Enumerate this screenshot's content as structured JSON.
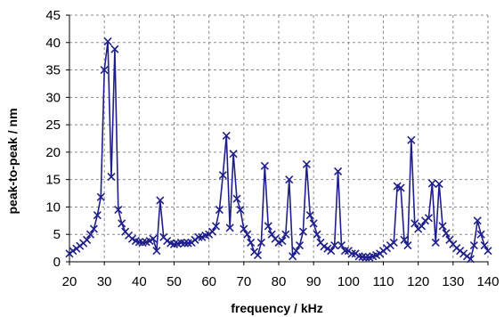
{
  "chart_data": {
    "type": "line",
    "title": "",
    "xlabel": "frequency / kHz",
    "ylabel": "peak-to-peak / nm",
    "xlim": [
      20,
      140
    ],
    "ylim": [
      0,
      45
    ],
    "xticks": [
      20,
      30,
      40,
      50,
      60,
      70,
      80,
      90,
      100,
      110,
      120,
      130,
      140
    ],
    "yticks": [
      0,
      5,
      10,
      15,
      20,
      25,
      30,
      35,
      40,
      45
    ],
    "grid": true,
    "legend": "none",
    "line_color": "#1f1f8c",
    "marker": "x",
    "series": [
      {
        "x": [
          20,
          21,
          22,
          23,
          24,
          25,
          26,
          27,
          28,
          29,
          30,
          31,
          32,
          33,
          34,
          35,
          36,
          37,
          38,
          39,
          40,
          41,
          42,
          43,
          44,
          45,
          46,
          47,
          48,
          49,
          50,
          51,
          52,
          53,
          54,
          55,
          56,
          57,
          58,
          59,
          60,
          61,
          62,
          63,
          64,
          65,
          66,
          67,
          68,
          69,
          70,
          71,
          72,
          73,
          74,
          75,
          76,
          77,
          78,
          79,
          80,
          81,
          82,
          83,
          84,
          85,
          86,
          87,
          88,
          89,
          90,
          91,
          92,
          93,
          94,
          95,
          96,
          97,
          98,
          99,
          100,
          101,
          102,
          103,
          104,
          105,
          106,
          107,
          108,
          109,
          110,
          111,
          112,
          113,
          114,
          115,
          116,
          117,
          118,
          119,
          120,
          121,
          122,
          123,
          124,
          125,
          126,
          127,
          128,
          129,
          130,
          131,
          132,
          133,
          134,
          135,
          136,
          137,
          138,
          139,
          140
        ],
        "y": [
          1.5,
          2,
          2.4,
          2.9,
          3.4,
          4,
          5,
          6,
          8.5,
          11.8,
          35,
          40.2,
          15.5,
          38.8,
          9.5,
          7,
          5.5,
          4.8,
          4.2,
          3.8,
          3.6,
          3.5,
          3.6,
          3.8,
          4.2,
          2,
          11.2,
          4.5,
          3.8,
          3.4,
          3.2,
          3.3,
          3.5,
          3.4,
          3.4,
          3.5,
          4,
          4.5,
          4.5,
          4.8,
          5,
          5.5,
          6.5,
          9.5,
          15.8,
          23,
          6.2,
          19.7,
          11.5,
          9.5,
          6,
          5,
          3.5,
          1.8,
          1.2,
          3.5,
          17.5,
          6.5,
          5,
          4.2,
          3.5,
          3.8,
          5,
          15,
          1,
          2,
          3,
          5.5,
          17.8,
          8.5,
          7,
          5,
          3.5,
          2.8,
          2.4,
          2,
          3,
          16.5,
          3,
          2,
          2,
          1.5,
          1.5,
          1,
          0.9,
          0.8,
          0.8,
          1,
          1.2,
          1.5,
          2,
          2.5,
          3,
          3.5,
          13.8,
          13.5,
          4,
          3,
          22.2,
          7,
          6,
          6.5,
          7.5,
          8,
          14.3,
          3.5,
          14.2,
          6.5,
          5.2,
          4,
          3.2,
          2.5,
          2,
          1.5,
          1,
          0.5,
          3,
          7.5,
          5,
          3,
          2
        ]
      }
    ]
  }
}
